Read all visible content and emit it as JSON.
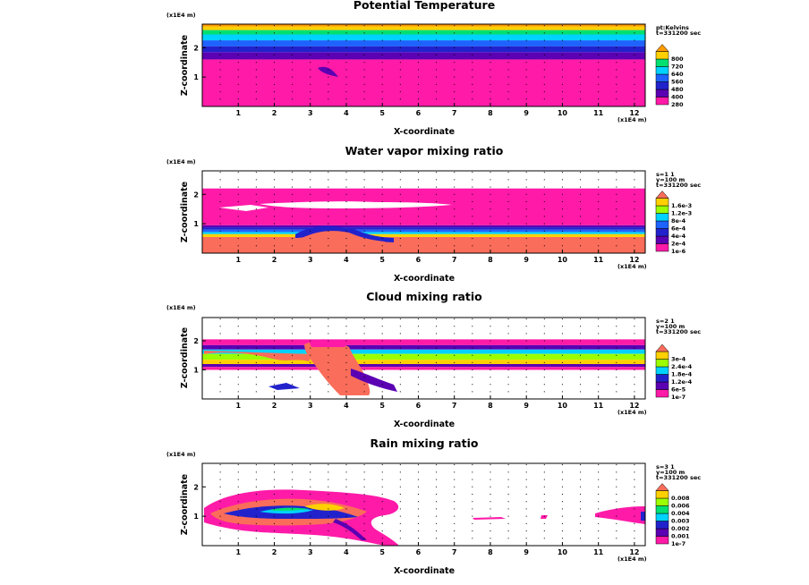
{
  "chart_data": [
    {
      "type": "heatmap",
      "title": "Potential Temperature",
      "xlabel": "X-coordinate",
      "ylabel": "Z-coordinate",
      "x_unit": "(x1E4 m)",
      "z_unit": "(x1E4 m)",
      "x_ticks": [
        "1",
        "2",
        "3",
        "4",
        "5",
        "6",
        "7",
        "8",
        "9",
        "10",
        "11",
        "12"
      ],
      "z_ticks": [
        "1",
        "2"
      ],
      "xlim": [
        0,
        12.3
      ],
      "zlim": [
        0,
        2.8
      ],
      "info_lines": [
        "pt:Kelvins",
        "t=331200 sec"
      ],
      "legend_levels": [
        "280",
        "400",
        "480",
        "560",
        "640",
        "720",
        "800"
      ],
      "levels": [
        280,
        400,
        480,
        560,
        640,
        720,
        800
      ],
      "bands": [
        {
          "z": [
            0,
            1.6
          ],
          "level": 0
        },
        {
          "z": [
            1.6,
            1.85
          ],
          "level": 1
        },
        {
          "z": [
            1.85,
            2.05
          ],
          "level": 2
        },
        {
          "z": [
            2.05,
            2.25
          ],
          "level": 3
        },
        {
          "z": [
            2.25,
            2.45
          ],
          "level": 4
        },
        {
          "z": [
            2.45,
            2.6
          ],
          "level": 5
        },
        {
          "z": [
            2.6,
            2.72
          ],
          "level": 6
        },
        {
          "z": [
            2.72,
            2.8
          ],
          "level": 7
        }
      ]
    },
    {
      "type": "heatmap",
      "title": "Water vapor mixing ratio",
      "xlabel": "X-coordinate",
      "ylabel": "Z-coordinate",
      "x_unit": "(x1E4 m)",
      "z_unit": "(x1E4 m)",
      "x_ticks": [
        "1",
        "2",
        "3",
        "4",
        "5",
        "6",
        "7",
        "8",
        "9",
        "10",
        "11",
        "12"
      ],
      "z_ticks": [
        "1",
        "2"
      ],
      "xlim": [
        0,
        12.3
      ],
      "zlim": [
        0,
        2.8
      ],
      "info_lines": [
        "s=1 1",
        "y=100 m",
        "t=331200 sec"
      ],
      "legend_levels": [
        "1e-6",
        "2e-4",
        "4e-4",
        "6e-4",
        "8e-4",
        "1.2e-3",
        "1.6e-3"
      ],
      "levels": [
        1e-06,
        0.0002,
        0.0004,
        0.0006,
        0.0008,
        0.0012,
        0.0016
      ],
      "bands": [
        {
          "z": [
            0,
            0.55
          ],
          "level": 7
        },
        {
          "z": [
            0.55,
            0.65
          ],
          "level": 6
        },
        {
          "z": [
            0.65,
            0.72
          ],
          "level": 4
        },
        {
          "z": [
            0.72,
            0.8
          ],
          "level": 3
        },
        {
          "z": [
            0.8,
            0.88
          ],
          "level": 2
        },
        {
          "z": [
            0.88,
            0.95
          ],
          "level": 1
        },
        {
          "z": [
            0.95,
            2.2
          ],
          "level": 0
        }
      ]
    },
    {
      "type": "heatmap",
      "title": "Cloud mixing ratio",
      "xlabel": "X-coordinate",
      "ylabel": "Z-coordinate",
      "x_unit": "(x1E4 m)",
      "z_unit": "(x1E4 m)",
      "x_ticks": [
        "1",
        "2",
        "3",
        "4",
        "5",
        "6",
        "7",
        "8",
        "9",
        "10",
        "11",
        "12"
      ],
      "z_ticks": [
        "1",
        "2"
      ],
      "xlim": [
        0,
        12.3
      ],
      "zlim": [
        0,
        2.8
      ],
      "info_lines": [
        "s=2 1",
        "y=100 m",
        "t=331200 sec"
      ],
      "legend_levels": [
        "1e-7",
        "6e-5",
        "1.2e-4",
        "1.8e-4",
        "2.4e-4",
        "3e-4"
      ],
      "levels": [
        1e-07,
        6e-05,
        0.00012,
        0.00018,
        0.00024,
        0.0003
      ],
      "bands": [
        {
          "z": [
            1.85,
            2.05
          ],
          "level": 0
        },
        {
          "z": [
            1.7,
            1.85
          ],
          "level": 1
        },
        {
          "z": [
            1.55,
            1.7
          ],
          "level": 3
        },
        {
          "z": [
            1.35,
            1.55
          ],
          "level": 4
        },
        {
          "z": [
            1.2,
            1.35
          ],
          "level": 5
        },
        {
          "z": [
            1.1,
            1.2
          ],
          "level": 1
        },
        {
          "z": [
            1.0,
            1.1
          ],
          "level": 0
        }
      ]
    },
    {
      "type": "heatmap",
      "title": "Rain mixing ratio",
      "xlabel": "X-coordinate",
      "ylabel": "Z-coordinate",
      "x_unit": "(x1E4 m)",
      "z_unit": "(x1E4 m)",
      "x_ticks": [
        "1",
        "2",
        "3",
        "4",
        "5",
        "6",
        "7",
        "8",
        "9",
        "10",
        "11",
        "12"
      ],
      "z_ticks": [
        "1",
        "2"
      ],
      "xlim": [
        0,
        12.3
      ],
      "zlim": [
        0,
        2.8
      ],
      "info_lines": [
        "s=3 1",
        "y=100 m",
        "t=331200 sec"
      ],
      "legend_levels": [
        "1e-7",
        "0.001",
        "0.002",
        "0.003",
        "0.004",
        "0.006",
        "0.008"
      ],
      "levels": [
        1e-07,
        0.001,
        0.002,
        0.003,
        0.004,
        0.006,
        0.008
      ],
      "bands": []
    }
  ],
  "palette": [
    "#ff1aa8",
    "#5b00b3",
    "#2222cc",
    "#1e63ff",
    "#00d2ff",
    "#00e070",
    "#9cff00",
    "#ffd000",
    "#ff9a00",
    "#fa6d5a"
  ]
}
